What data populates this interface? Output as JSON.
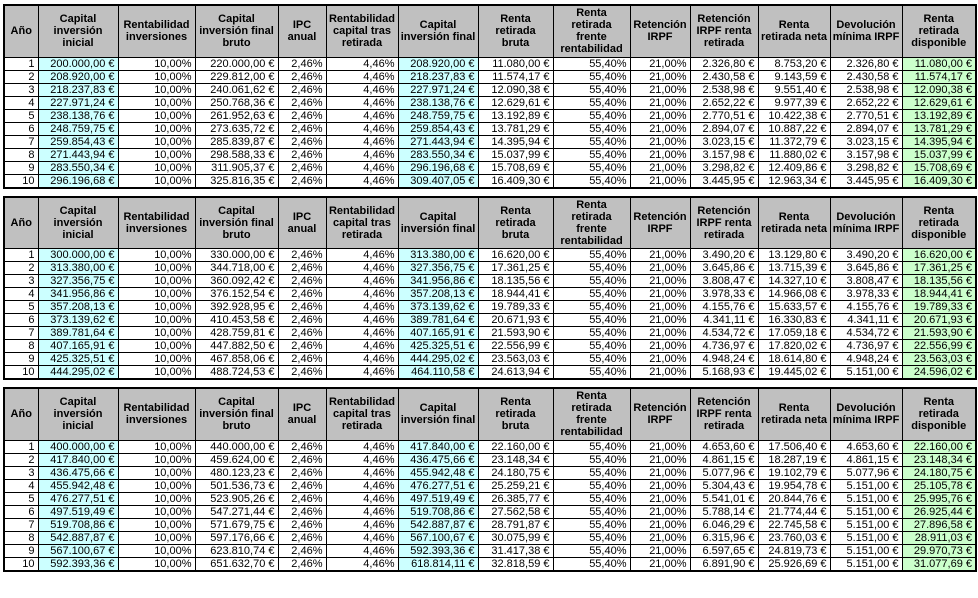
{
  "columns": [
    "Año",
    "Capital inversión inicial",
    "Rentabilidad inversiones",
    "Capital inversión final bruto",
    "IPC anual",
    "Rentabilidad capital tras retirada",
    "Capital inversión final",
    "Renta retirada bruta",
    "Renta retirada frente rentabilidad",
    "Retención IRPF",
    "Retención IRPF renta retirada",
    "Renta retirada neta",
    "Devolución mínima IRPF",
    "Renta retirada disponible"
  ],
  "colors": {
    "header_bg": "#c0c0c0",
    "highlight_cyan": "#ccffff",
    "highlight_green": "#ccffcc",
    "border": "#000000",
    "page_bg": "#ffffff"
  },
  "highlighted_columns": {
    "cyan": [
      1,
      6
    ],
    "green": [
      13
    ]
  },
  "tables": [
    {
      "rows": [
        [
          "1",
          "200.000,00 €",
          "10,00%",
          "220.000,00 €",
          "2,46%",
          "4,46%",
          "208.920,00 €",
          "11.080,00 €",
          "55,40%",
          "21,00%",
          "2.326,80 €",
          "8.753,20 €",
          "2.326,80 €",
          "11.080,00 €"
        ],
        [
          "2",
          "208.920,00 €",
          "10,00%",
          "229.812,00 €",
          "2,46%",
          "4,46%",
          "218.237,83 €",
          "11.574,17 €",
          "55,40%",
          "21,00%",
          "2.430,58 €",
          "9.143,59 €",
          "2.430,58 €",
          "11.574,17 €"
        ],
        [
          "3",
          "218.237,83 €",
          "10,00%",
          "240.061,62 €",
          "2,46%",
          "4,46%",
          "227.971,24 €",
          "12.090,38 €",
          "55,40%",
          "21,00%",
          "2.538,98 €",
          "9.551,40 €",
          "2.538,98 €",
          "12.090,38 €"
        ],
        [
          "4",
          "227.971,24 €",
          "10,00%",
          "250.768,36 €",
          "2,46%",
          "4,46%",
          "238.138,76 €",
          "12.629,61 €",
          "55,40%",
          "21,00%",
          "2.652,22 €",
          "9.977,39 €",
          "2.652,22 €",
          "12.629,61 €"
        ],
        [
          "5",
          "238.138,76 €",
          "10,00%",
          "261.952,63 €",
          "2,46%",
          "4,46%",
          "248.759,75 €",
          "13.192,89 €",
          "55,40%",
          "21,00%",
          "2.770,51 €",
          "10.422,38 €",
          "2.770,51 €",
          "13.192,89 €"
        ],
        [
          "6",
          "248.759,75 €",
          "10,00%",
          "273.635,72 €",
          "2,46%",
          "4,46%",
          "259.854,43 €",
          "13.781,29 €",
          "55,40%",
          "21,00%",
          "2.894,07 €",
          "10.887,22 €",
          "2.894,07 €",
          "13.781,29 €"
        ],
        [
          "7",
          "259.854,43 €",
          "10,00%",
          "285.839,87 €",
          "2,46%",
          "4,46%",
          "271.443,94 €",
          "14.395,94 €",
          "55,40%",
          "21,00%",
          "3.023,15 €",
          "11.372,79 €",
          "3.023,15 €",
          "14.395,94 €"
        ],
        [
          "8",
          "271.443,94 €",
          "10,00%",
          "298.588,33 €",
          "2,46%",
          "4,46%",
          "283.550,34 €",
          "15.037,99 €",
          "55,40%",
          "21,00%",
          "3.157,98 €",
          "11.880,02 €",
          "3.157,98 €",
          "15.037,99 €"
        ],
        [
          "9",
          "283.550,34 €",
          "10,00%",
          "311.905,37 €",
          "2,46%",
          "4,46%",
          "296.196,68 €",
          "15.708,69 €",
          "55,40%",
          "21,00%",
          "3.298,82 €",
          "12.409,86 €",
          "3.298,82 €",
          "15.708,69 €"
        ],
        [
          "10",
          "296.196,68 €",
          "10,00%",
          "325.816,35 €",
          "2,46%",
          "4,46%",
          "309.407,05 €",
          "16.409,30 €",
          "55,40%",
          "21,00%",
          "3.445,95 €",
          "12.963,34 €",
          "3.445,95 €",
          "16.409,30 €"
        ]
      ]
    },
    {
      "rows": [
        [
          "1",
          "300.000,00 €",
          "10,00%",
          "330.000,00 €",
          "2,46%",
          "4,46%",
          "313.380,00 €",
          "16.620,00 €",
          "55,40%",
          "21,00%",
          "3.490,20 €",
          "13.129,80 €",
          "3.490,20 €",
          "16.620,00 €"
        ],
        [
          "2",
          "313.380,00 €",
          "10,00%",
          "344.718,00 €",
          "2,46%",
          "4,46%",
          "327.356,75 €",
          "17.361,25 €",
          "55,40%",
          "21,00%",
          "3.645,86 €",
          "13.715,39 €",
          "3.645,86 €",
          "17.361,25 €"
        ],
        [
          "3",
          "327.356,75 €",
          "10,00%",
          "360.092,42 €",
          "2,46%",
          "4,46%",
          "341.956,86 €",
          "18.135,56 €",
          "55,40%",
          "21,00%",
          "3.808,47 €",
          "14.327,10 €",
          "3.808,47 €",
          "18.135,56 €"
        ],
        [
          "4",
          "341.956,86 €",
          "10,00%",
          "376.152,54 €",
          "2,46%",
          "4,46%",
          "357.208,13 €",
          "18.944,41 €",
          "55,40%",
          "21,00%",
          "3.978,33 €",
          "14.966,08 €",
          "3.978,33 €",
          "18.944,41 €"
        ],
        [
          "5",
          "357.208,13 €",
          "10,00%",
          "392.928,95 €",
          "2,46%",
          "4,46%",
          "373.139,62 €",
          "19.789,33 €",
          "55,40%",
          "21,00%",
          "4.155,76 €",
          "15.633,57 €",
          "4.155,76 €",
          "19.789,33 €"
        ],
        [
          "6",
          "373.139,62 €",
          "10,00%",
          "410.453,58 €",
          "2,46%",
          "4,46%",
          "389.781,64 €",
          "20.671,93 €",
          "55,40%",
          "21,00%",
          "4.341,11 €",
          "16.330,83 €",
          "4.341,11 €",
          "20.671,93 €"
        ],
        [
          "7",
          "389.781,64 €",
          "10,00%",
          "428.759,81 €",
          "2,46%",
          "4,46%",
          "407.165,91 €",
          "21.593,90 €",
          "55,40%",
          "21,00%",
          "4.534,72 €",
          "17.059,18 €",
          "4.534,72 €",
          "21.593,90 €"
        ],
        [
          "8",
          "407.165,91 €",
          "10,00%",
          "447.882,50 €",
          "2,46%",
          "4,46%",
          "425.325,51 €",
          "22.556,99 €",
          "55,40%",
          "21,00%",
          "4.736,97 €",
          "17.820,02 €",
          "4.736,97 €",
          "22.556,99 €"
        ],
        [
          "9",
          "425.325,51 €",
          "10,00%",
          "467.858,06 €",
          "2,46%",
          "4,46%",
          "444.295,02 €",
          "23.563,03 €",
          "55,40%",
          "21,00%",
          "4.948,24 €",
          "18.614,80 €",
          "4.948,24 €",
          "23.563,03 €"
        ],
        [
          "10",
          "444.295,02 €",
          "10,00%",
          "488.724,53 €",
          "2,46%",
          "4,46%",
          "464.110,58 €",
          "24.613,94 €",
          "55,40%",
          "21,00%",
          "5.168,93 €",
          "19.445,02 €",
          "5.151,00 €",
          "24.596,02 €"
        ]
      ]
    },
    {
      "rows": [
        [
          "1",
          "400.000,00 €",
          "10,00%",
          "440.000,00 €",
          "2,46%",
          "4,46%",
          "417.840,00 €",
          "22.160,00 €",
          "55,40%",
          "21,00%",
          "4.653,60 €",
          "17.506,40 €",
          "4.653,60 €",
          "22.160,00 €"
        ],
        [
          "2",
          "417.840,00 €",
          "10,00%",
          "459.624,00 €",
          "2,46%",
          "4,46%",
          "436.475,66 €",
          "23.148,34 €",
          "55,40%",
          "21,00%",
          "4.861,15 €",
          "18.287,19 €",
          "4.861,15 €",
          "23.148,34 €"
        ],
        [
          "3",
          "436.475,66 €",
          "10,00%",
          "480.123,23 €",
          "2,46%",
          "4,46%",
          "455.942,48 €",
          "24.180,75 €",
          "55,40%",
          "21,00%",
          "5.077,96 €",
          "19.102,79 €",
          "5.077,96 €",
          "24.180,75 €"
        ],
        [
          "4",
          "455.942,48 €",
          "10,00%",
          "501.536,73 €",
          "2,46%",
          "4,46%",
          "476.277,51 €",
          "25.259,21 €",
          "55,40%",
          "21,00%",
          "5.304,43 €",
          "19.954,78 €",
          "5.151,00 €",
          "25.105,78 €"
        ],
        [
          "5",
          "476.277,51 €",
          "10,00%",
          "523.905,26 €",
          "2,46%",
          "4,46%",
          "497.519,49 €",
          "26.385,77 €",
          "55,40%",
          "21,00%",
          "5.541,01 €",
          "20.844,76 €",
          "5.151,00 €",
          "25.995,76 €"
        ],
        [
          "6",
          "497.519,49 €",
          "10,00%",
          "547.271,44 €",
          "2,46%",
          "4,46%",
          "519.708,86 €",
          "27.562,58 €",
          "55,40%",
          "21,00%",
          "5.788,14 €",
          "21.774,44 €",
          "5.151,00 €",
          "26.925,44 €"
        ],
        [
          "7",
          "519.708,86 €",
          "10,00%",
          "571.679,75 €",
          "2,46%",
          "4,46%",
          "542.887,87 €",
          "28.791,87 €",
          "55,40%",
          "21,00%",
          "6.046,29 €",
          "22.745,58 €",
          "5.151,00 €",
          "27.896,58 €"
        ],
        [
          "8",
          "542.887,87 €",
          "10,00%",
          "597.176,66 €",
          "2,46%",
          "4,46%",
          "567.100,67 €",
          "30.075,99 €",
          "55,40%",
          "21,00%",
          "6.315,96 €",
          "23.760,03 €",
          "5.151,00 €",
          "28.911,03 €"
        ],
        [
          "9",
          "567.100,67 €",
          "10,00%",
          "623.810,74 €",
          "2,46%",
          "4,46%",
          "592.393,36 €",
          "31.417,38 €",
          "55,40%",
          "21,00%",
          "6.597,65 €",
          "24.819,73 €",
          "5.151,00 €",
          "29.970,73 €"
        ],
        [
          "10",
          "592.393,36 €",
          "10,00%",
          "651.632,70 €",
          "2,46%",
          "4,46%",
          "618.814,11 €",
          "32.818,59 €",
          "55,40%",
          "21,00%",
          "6.891,90 €",
          "25.926,69 €",
          "5.151,00 €",
          "31.077,69 €"
        ]
      ]
    }
  ]
}
